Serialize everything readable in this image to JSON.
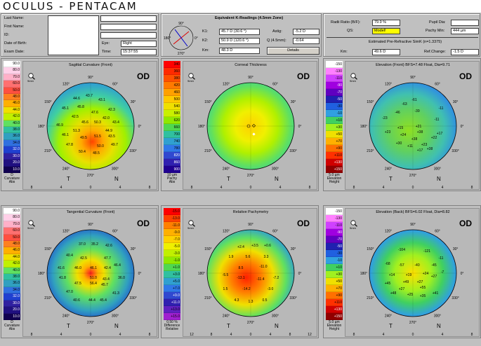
{
  "app": {
    "title": "OCULUS - PENTACAM"
  },
  "patient": {
    "last_name_label": "Last Name:",
    "first_name_label": "First Name:",
    "id_label": "ID:",
    "dob_label": "Date of Birth:",
    "exam_date_label": "Exam Date:",
    "eye_label": "Eye:",
    "eye_value": "Right",
    "time_label": "Time:",
    "time_value": "15:37:55"
  },
  "kreadings": {
    "title": "Equivalent K-Readings (4.5mm Zone)",
    "k1_label": "K1:",
    "k1_value": "45.7 D  (30.6 °)",
    "k2_label": "K2:",
    "k2_value": "50.9 D  (120.6 °)",
    "km_label": "Km:",
    "km_value": "48.3 D",
    "astig_label": "Astig:",
    "astig_value": "-5.2 D",
    "q_label": "Q (4.5mm):",
    "q_value": "-0.64",
    "details_label": "Details",
    "axis_top": "90°",
    "axis_bottom": "270°",
    "axis_right": "0°",
    "axis_left": "180°"
  },
  "radii": {
    "ratio_label": "Radii Ratio (B/F):",
    "ratio_value": "79.9 %",
    "qs_label": "QS:",
    "qs_value": "Model!",
    "pupil_label": "Pupil Dia:",
    "pupil_value": "",
    "pachy_label": "Pachy Min:",
    "pachy_value": "444 µm",
    "simk_title": "Estimated Pre-Refractive SimK (n=1.3375)",
    "km_label": "Km:",
    "km_value": "49.6 D",
    "ref_label": "Ref.Change:",
    "ref_value": "-1.5 D",
    "qs_color": "#ffff00"
  },
  "maps": [
    {
      "title": "Sagittal Curvature (Front)",
      "od": "OD",
      "zoom": "9mm",
      "scale": [
        "90.0",
        "80.0",
        "70.0",
        "60.0",
        "50.0",
        "48.0",
        "46.0",
        "44.0",
        "42.0",
        "40.0",
        "38.0",
        "36.0",
        "34.0",
        "32.0",
        "30.0",
        "20.0",
        "10.0"
      ],
      "scale_colors": [
        "#ffffff",
        "#ffd0e8",
        "#ffb0c8",
        "#ff7070",
        "#ff5040",
        "#ff8020",
        "#ffb000",
        "#f0e000",
        "#c0f000",
        "#60e060",
        "#30c0a0",
        "#30a0c0",
        "#3070e0",
        "#2040d0",
        "#3020a0",
        "#201080",
        "#100050"
      ],
      "foot": "D\nCurvature\nAbs",
      "labels": [
        "44.6",
        "43.7",
        "43.1",
        "45.1",
        "45.8",
        "42.3",
        "42.5",
        "47.6",
        "42.0",
        "45.6",
        "50.3",
        "43.4",
        "46.9",
        "51.3",
        "44.9",
        "46.1",
        "49.5",
        "51.5",
        "43.5",
        "47.8",
        "50.0",
        "49.7",
        "50.4",
        "48.5"
      ],
      "x_ticks": [
        "8",
        "4",
        "0",
        "4",
        "8"
      ]
    },
    {
      "title": "Corneal Thickness",
      "od": "OD",
      "zoom": "9mm",
      "scale": [
        "340",
        "360",
        "380",
        "420",
        "460",
        "500",
        "540",
        "580",
        "620",
        "660",
        "700",
        "740",
        "780",
        "820",
        "860",
        "900"
      ],
      "scale_colors": [
        "#ff0000",
        "#ff2a00",
        "#ff5000",
        "#ff7a00",
        "#ffa000",
        "#ffc800",
        "#f0e000",
        "#c8f000",
        "#90e800",
        "#50d850",
        "#30c0a0",
        "#30a0d0",
        "#3078e8",
        "#3048d0",
        "#3020b0",
        "#200090"
      ],
      "foot": "10 µm\nPachy\nAbs",
      "labels": [],
      "x_ticks": [
        "8",
        "4",
        "0",
        "4",
        "8"
      ]
    },
    {
      "title": "Elevation (Front)  BFS=7.48 Float, Dia=9.71",
      "od": "OD",
      "zoom": "9mm",
      "scale": [
        "-150",
        "-130",
        "-110",
        "-90",
        "-70",
        "-50",
        "-30",
        "-10",
        "+10",
        "+30",
        "+50",
        "+70",
        "+90",
        "+110",
        "+130",
        "+150"
      ],
      "scale_colors": [
        "#ffffff",
        "#ff80ff",
        "#d040ff",
        "#a000e0",
        "#6000c0",
        "#2020b0",
        "#2060e0",
        "#30a0e0",
        "#40d060",
        "#a0f020",
        "#f0e000",
        "#ffb000",
        "#ff7000",
        "#ff3000",
        "#d00000",
        "#900000"
      ],
      "foot": "5.0 µm\nElevation\nHeight",
      "labels": [
        "-63",
        "-61",
        "-46",
        "-39",
        "-23",
        "-11",
        "+15",
        "+21",
        "+23",
        "+38",
        "+17",
        "+24",
        "+38",
        "+22",
        "+30",
        "+11",
        "+17",
        "+38",
        "-11",
        "+23"
      ],
      "x_ticks": [
        "8",
        "4",
        "0",
        "4",
        "8"
      ]
    },
    {
      "title": "Tangential Curvature (Front)",
      "od": "OD",
      "zoom": "9mm",
      "scale": [
        "90.0",
        "80.0",
        "70.0",
        "60.0",
        "50.0",
        "48.0",
        "46.0",
        "44.0",
        "42.0",
        "40.0",
        "38.0",
        "36.0",
        "34.0",
        "32.0",
        "30.0",
        "20.0",
        "10.0"
      ],
      "scale_colors": [
        "#ffffff",
        "#ffd0e8",
        "#ffb0c8",
        "#ff7070",
        "#ff5040",
        "#ff8020",
        "#ffb000",
        "#f0e000",
        "#c0f000",
        "#60e060",
        "#30c0a0",
        "#30a0c0",
        "#3070e0",
        "#2040d0",
        "#3020a0",
        "#201080",
        "#100050"
      ],
      "foot": "D\nCurvature\nAbs",
      "labels": [
        "37.0",
        "35.2",
        "42.6",
        "40.4",
        "42.5",
        "47.7",
        "46.4",
        "41.6",
        "46.0",
        "46.1",
        "42.4",
        "41.8",
        "51.0",
        "43.4",
        "36.0",
        "47.5",
        "56.4",
        "45.7",
        "47.0",
        "40.6",
        "44.4",
        "45.4",
        "41.3"
      ],
      "x_ticks": [
        "8",
        "4",
        "0",
        "4",
        "8"
      ]
    },
    {
      "title": "Relative Pachymetry",
      "od": "OD",
      "zoom": "9mm",
      "scale": [
        "-15.0",
        "-13.0",
        "-11.0",
        "-9.0",
        "-7.0",
        "-5.0",
        "-3.0",
        "-1.0",
        "+1.0",
        "+3.0",
        "+5.0",
        "+7.0",
        "+9.0",
        "+11.0",
        "+13.0",
        "+15.0"
      ],
      "scale_colors": [
        "#ff0000",
        "#ff4000",
        "#ff8000",
        "#ffb000",
        "#ffd000",
        "#f0f000",
        "#c0f000",
        "#90e800",
        "#50d850",
        "#30c0a0",
        "#30a0d0",
        "#3078e8",
        "#3048d0",
        "#3020b0",
        "#6020c0",
        "#a020d0"
      ],
      "foot": "0.50 %\nDifference\nRelative",
      "labels": [
        "+2.4",
        "+3.5",
        "+0.6",
        "1.9",
        "5.6",
        "3.3",
        "8.5",
        "-11.0",
        "-5.5",
        "-13.1",
        "-11.4",
        "-7.2",
        "1.5",
        "-14.2",
        "-3.0",
        "4.3",
        "1.3",
        "0.5"
      ],
      "x_ticks": [
        "12",
        "8",
        "4",
        "0",
        "4",
        "8",
        "12"
      ]
    },
    {
      "title": "Elevation (Back)  BFS=6.02 Float, Dia=8.82",
      "od": "OD",
      "zoom": "9mm",
      "scale": [
        "-150",
        "-130",
        "-110",
        "-90",
        "-70",
        "-50",
        "-30",
        "-10",
        "+10",
        "+30",
        "+50",
        "+70",
        "+90",
        "+110",
        "+130",
        "+150"
      ],
      "scale_colors": [
        "#ffffff",
        "#ff80ff",
        "#d040ff",
        "#a000e0",
        "#6000c0",
        "#2020b0",
        "#2060e0",
        "#30a0e0",
        "#40d060",
        "#a0f020",
        "#f0e000",
        "#ffb000",
        "#ff7000",
        "#ff3000",
        "#d00000",
        "#900000"
      ],
      "foot": "5.0 µm\nElevation\nHeight",
      "labels": [
        "-104",
        "-121",
        "-68",
        "-57",
        "-40",
        "-45",
        "-7",
        "+14",
        "+19",
        "+24",
        "+27",
        "+45",
        "+49",
        "+27",
        "+55",
        "+27",
        "+48",
        "+25",
        "+35",
        "+41",
        "-11"
      ],
      "x_ticks": [
        "8",
        "4",
        "0",
        "4",
        "8"
      ]
    }
  ],
  "common": {
    "t_label": "T",
    "n_label": "N",
    "deg90": "90°",
    "deg270": "270°",
    "deg0": "0°",
    "deg180": "180°",
    "deg120": "120°",
    "deg60": "60°",
    "deg30": "30°",
    "deg330": "330°",
    "deg300": "300°",
    "deg240": "240°",
    "deg210": "210°",
    "deg150": "150°"
  }
}
